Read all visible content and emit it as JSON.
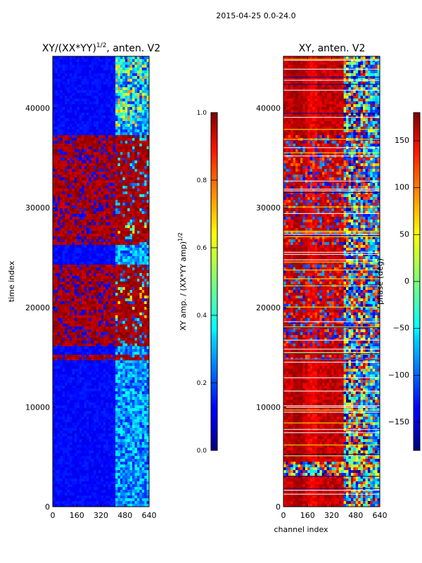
{
  "chart_data": {
    "type": "heatmap",
    "suptitle": "2015-04-25 0.0-24.0",
    "colormap": "jet",
    "panels": [
      {
        "title_main": "XY/(XX*YY)",
        "title_exp": "1/2",
        "title_rest": ", anten. V2",
        "xlabel": "",
        "ylabel": "time index",
        "xlim": [
          0,
          640
        ],
        "ylim": [
          0,
          45200
        ],
        "xticks": [
          "0",
          "160",
          "320",
          "480",
          "640"
        ],
        "yticks": [
          "0",
          "10000",
          "20000",
          "30000",
          "40000"
        ],
        "colorbar": {
          "label_main": "XY amp. / (XX*YY amp)",
          "label_exp": "1/2",
          "range": [
            0.0,
            1.0
          ],
          "ticks": [
            "0.0",
            "0.2",
            "0.4",
            "0.6",
            "0.8",
            "1.0"
          ]
        }
      },
      {
        "title_main": "XY, anten. V2",
        "title_exp": "",
        "title_rest": "",
        "xlabel": "channel index",
        "ylabel": "",
        "xlim": [
          0,
          640
        ],
        "ylim": [
          0,
          45200
        ],
        "xticks": [
          "0",
          "160",
          "320",
          "480",
          "640"
        ],
        "yticks": [
          "0",
          "10000",
          "20000",
          "30000",
          "40000"
        ],
        "colorbar": {
          "label_main": "phase (deg)",
          "label_exp": "",
          "range": [
            -180,
            180
          ],
          "ticks": [
            "−150",
            "−100",
            "−50",
            "0",
            "50",
            "100",
            "150"
          ]
        }
      }
    ],
    "amp_red_flag_bands": [
      [
        37200,
        26200
      ],
      [
        24400,
        16000
      ],
      [
        15200,
        14600
      ]
    ],
    "amp_bright_channel_range": [
      410,
      640
    ]
  }
}
